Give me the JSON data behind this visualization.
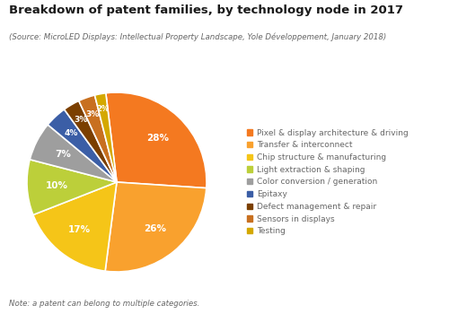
{
  "title": "Breakdown of patent families, by technology node in 2017",
  "subtitle": "(Source: MicroLED Displays: Intellectual Property Landscape, Yole Développement, January 2018)",
  "note": "Note: a patent can belong to multiple categories.",
  "labels": [
    "Pixel & display architecture & driving",
    "Transfer & interconnect",
    "Chip structure & manufacturing",
    "Light extraction & shaping",
    "Color conversion / generation",
    "Epitaxy",
    "Defect management & repair",
    "Sensors in displays",
    "Testing"
  ],
  "values": [
    28,
    26,
    17,
    10,
    7,
    4,
    3,
    3,
    2
  ],
  "colors": [
    "#F47920",
    "#F9A12E",
    "#F5C518",
    "#BCCF3A",
    "#9E9E9E",
    "#3B5EA6",
    "#7B3F00",
    "#C87020",
    "#D4A800"
  ],
  "pct_labels": [
    "28%",
    "26%",
    "17%",
    "10%",
    "7%",
    "4%",
    "3%",
    "3%",
    "2%"
  ],
  "background_color": "#FFFFFF",
  "title_color": "#1a1a1a",
  "subtitle_color": "#666666",
  "legend_text_color": "#666666",
  "note_color": "#666666",
  "startangle": 97
}
